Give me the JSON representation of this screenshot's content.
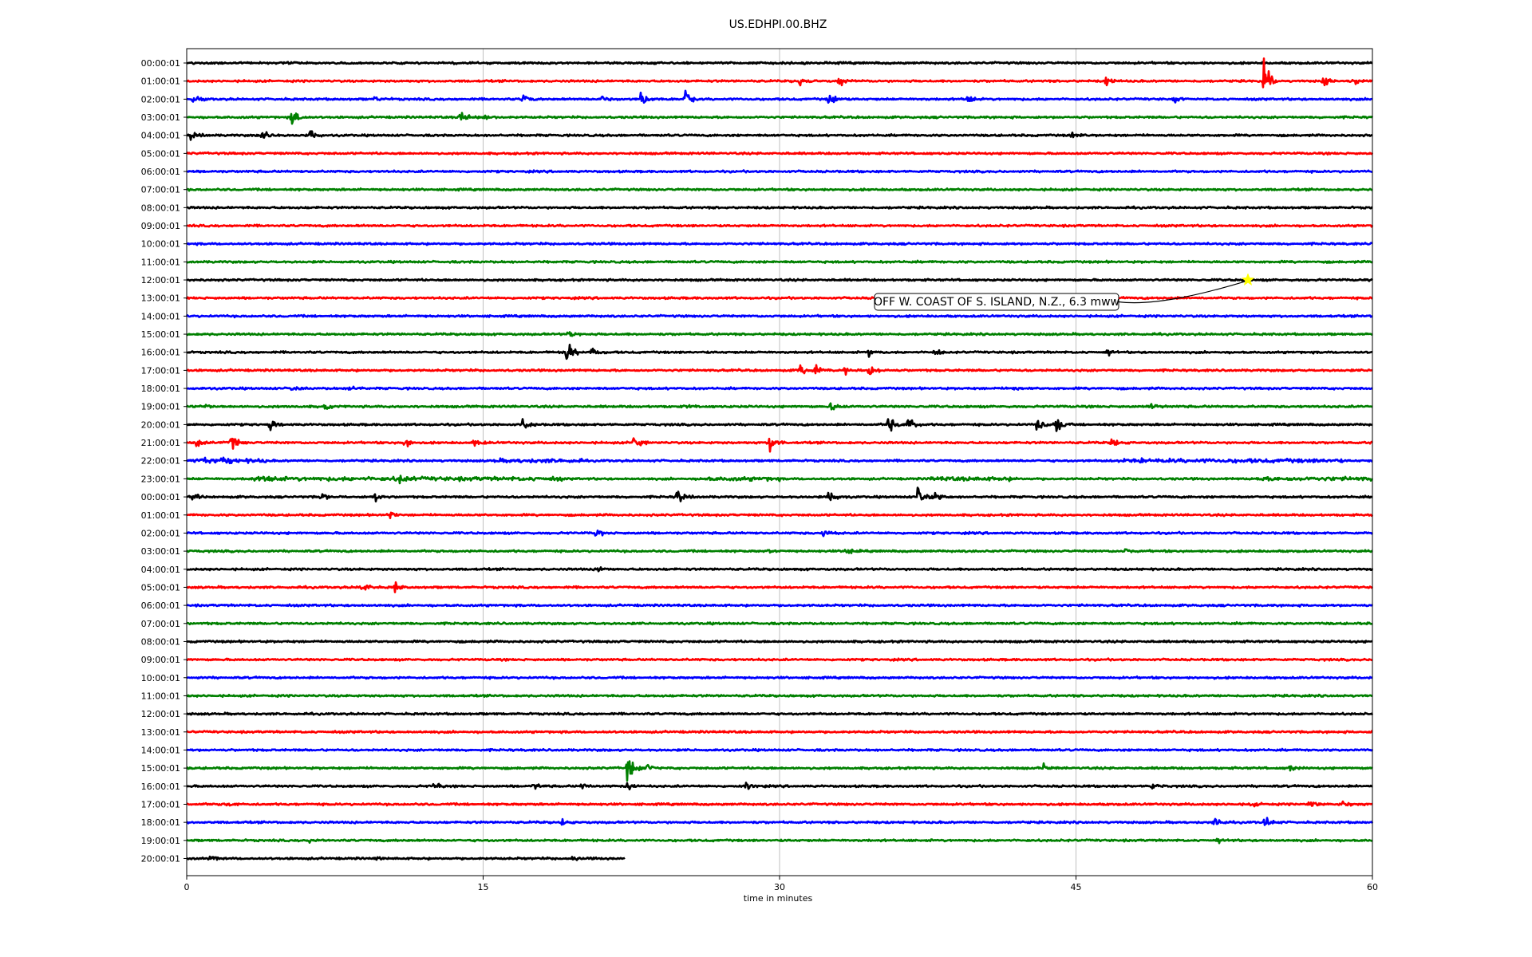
{
  "chart_data": {
    "type": "line",
    "title": "US.EDHPI.00.BHZ",
    "xlabel": "time in minutes",
    "ylabel": "",
    "xlim": [
      0,
      60
    ],
    "x_ticks": [
      0,
      15,
      30,
      45,
      60
    ],
    "grid": true,
    "grid_axis": "x",
    "color_cycle": [
      "#000000",
      "#ff0000",
      "#0000ff",
      "#008000"
    ],
    "last_trace_end_minute": 22.2,
    "row_labels": [
      "00:00:01",
      "01:00:01",
      "02:00:01",
      "03:00:01",
      "04:00:01",
      "05:00:01",
      "06:00:01",
      "07:00:01",
      "08:00:01",
      "09:00:01",
      "10:00:01",
      "11:00:01",
      "12:00:01",
      "13:00:01",
      "14:00:01",
      "15:00:01",
      "16:00:01",
      "17:00:01",
      "18:00:01",
      "19:00:01",
      "20:00:01",
      "21:00:01",
      "22:00:01",
      "23:00:01",
      "00:00:01",
      "01:00:01",
      "02:00:01",
      "03:00:01",
      "04:00:01",
      "05:00:01",
      "06:00:01",
      "07:00:01",
      "08:00:01",
      "09:00:01",
      "10:00:01",
      "11:00:01",
      "12:00:01",
      "13:00:01",
      "14:00:01",
      "15:00:01",
      "16:00:01",
      "17:00:01",
      "18:00:01",
      "19:00:01",
      "20:00:01"
    ],
    "bursts": [
      {
        "row": 1,
        "minute": 31.0,
        "amp": 1.0
      },
      {
        "row": 1,
        "minute": 33.0,
        "amp": 0.9
      },
      {
        "row": 1,
        "minute": 46.5,
        "amp": 0.8
      },
      {
        "row": 1,
        "minute": 54.5,
        "amp": 3.2
      },
      {
        "row": 1,
        "minute": 57.5,
        "amp": 1.0
      },
      {
        "row": 1,
        "minute": 59.0,
        "amp": 0.9
      },
      {
        "row": 2,
        "minute": 0.3,
        "amp": 0.8
      },
      {
        "row": 2,
        "minute": 9.5,
        "amp": 0.6
      },
      {
        "row": 2,
        "minute": 17.0,
        "amp": 0.8
      },
      {
        "row": 2,
        "minute": 21.0,
        "amp": 0.8
      },
      {
        "row": 2,
        "minute": 23.0,
        "amp": 1.4
      },
      {
        "row": 2,
        "minute": 25.2,
        "amp": 1.4
      },
      {
        "row": 2,
        "minute": 32.5,
        "amp": 1.4
      },
      {
        "row": 2,
        "minute": 39.5,
        "amp": 1.0
      },
      {
        "row": 2,
        "minute": 50.0,
        "amp": 0.6
      },
      {
        "row": 3,
        "minute": 5.3,
        "amp": 1.4
      },
      {
        "row": 3,
        "minute": 13.8,
        "amp": 1.4
      },
      {
        "row": 3,
        "minute": 15.0,
        "amp": 0.8
      },
      {
        "row": 4,
        "minute": 0.2,
        "amp": 0.7
      },
      {
        "row": 4,
        "minute": 3.8,
        "amp": 1.4
      },
      {
        "row": 4,
        "minute": 6.2,
        "amp": 1.2
      },
      {
        "row": 4,
        "minute": 44.8,
        "amp": 1.2
      },
      {
        "row": 15,
        "minute": 19.3,
        "amp": 0.7
      },
      {
        "row": 16,
        "minute": 19.2,
        "amp": 2.0
      },
      {
        "row": 16,
        "minute": 20.5,
        "amp": 0.7
      },
      {
        "row": 16,
        "minute": 34.5,
        "amp": 0.7
      },
      {
        "row": 16,
        "minute": 37.8,
        "amp": 0.7
      },
      {
        "row": 16,
        "minute": 46.5,
        "amp": 0.7
      },
      {
        "row": 17,
        "minute": 31.0,
        "amp": 1.1
      },
      {
        "row": 17,
        "minute": 31.8,
        "amp": 0.9
      },
      {
        "row": 17,
        "minute": 33.3,
        "amp": 0.8
      },
      {
        "row": 17,
        "minute": 34.5,
        "amp": 1.2
      },
      {
        "row": 18,
        "minute": 5.3,
        "amp": 0.5
      },
      {
        "row": 18,
        "minute": 8.2,
        "amp": 0.5
      },
      {
        "row": 18,
        "minute": 41.8,
        "amp": 0.5
      },
      {
        "row": 19,
        "minute": 0.9,
        "amp": 0.6
      },
      {
        "row": 19,
        "minute": 7.0,
        "amp": 0.6
      },
      {
        "row": 19,
        "minute": 25.2,
        "amp": 0.4
      },
      {
        "row": 19,
        "minute": 32.6,
        "amp": 0.8
      },
      {
        "row": 19,
        "minute": 48.8,
        "amp": 0.8
      },
      {
        "row": 20,
        "minute": 4.2,
        "amp": 0.8
      },
      {
        "row": 20,
        "minute": 17.0,
        "amp": 1.2
      },
      {
        "row": 20,
        "minute": 35.5,
        "amp": 1.8
      },
      {
        "row": 20,
        "minute": 36.5,
        "amp": 1.6
      },
      {
        "row": 20,
        "minute": 43.0,
        "amp": 1.6
      },
      {
        "row": 20,
        "minute": 44.0,
        "amp": 1.4
      },
      {
        "row": 21,
        "minute": 0.5,
        "amp": 0.8
      },
      {
        "row": 21,
        "minute": 2.2,
        "amp": 1.5
      },
      {
        "row": 21,
        "minute": 11.0,
        "amp": 1.0
      },
      {
        "row": 21,
        "minute": 14.5,
        "amp": 0.8
      },
      {
        "row": 21,
        "minute": 22.6,
        "amp": 1.1
      },
      {
        "row": 21,
        "minute": 29.5,
        "amp": 2.0
      },
      {
        "row": 21,
        "minute": 46.8,
        "amp": 0.8
      },
      {
        "row": 22,
        "minute": 0.8,
        "amp": 0.9
      },
      {
        "row": 22,
        "minute": 1.8,
        "amp": 0.8
      },
      {
        "row": 22,
        "minute": 48.3,
        "amp": 0.5
      },
      {
        "row": 23,
        "minute": 3.8,
        "amp": 1.2
      },
      {
        "row": 23,
        "minute": 10.8,
        "amp": 0.8
      },
      {
        "row": 24,
        "minute": 0.3,
        "amp": 0.6
      },
      {
        "row": 24,
        "minute": 6.8,
        "amp": 0.8
      },
      {
        "row": 24,
        "minute": 9.5,
        "amp": 0.8
      },
      {
        "row": 24,
        "minute": 24.8,
        "amp": 1.2
      },
      {
        "row": 24,
        "minute": 32.5,
        "amp": 1.4
      },
      {
        "row": 24,
        "minute": 37.0,
        "amp": 1.6
      },
      {
        "row": 24,
        "minute": 37.8,
        "amp": 1.1
      },
      {
        "row": 25,
        "minute": 10.2,
        "amp": 0.9
      },
      {
        "row": 26,
        "minute": 20.7,
        "amp": 0.7
      },
      {
        "row": 26,
        "minute": 32.2,
        "amp": 0.7
      },
      {
        "row": 27,
        "minute": 29.4,
        "amp": 0.8
      },
      {
        "row": 27,
        "minute": 33.3,
        "amp": 0.9
      },
      {
        "row": 27,
        "minute": 47.5,
        "amp": 0.6
      },
      {
        "row": 28,
        "minute": 20.8,
        "amp": 0.6
      },
      {
        "row": 29,
        "minute": 8.8,
        "amp": 0.8
      },
      {
        "row": 29,
        "minute": 10.5,
        "amp": 1.0
      },
      {
        "row": 39,
        "minute": 22.3,
        "amp": 2.2
      },
      {
        "row": 39,
        "minute": 23.3,
        "amp": 0.6
      },
      {
        "row": 39,
        "minute": 43.3,
        "amp": 0.8
      },
      {
        "row": 39,
        "minute": 55.8,
        "amp": 0.6
      },
      {
        "row": 40,
        "minute": 12.5,
        "amp": 0.8
      },
      {
        "row": 40,
        "minute": 17.5,
        "amp": 0.7
      },
      {
        "row": 40,
        "minute": 20.0,
        "amp": 0.7
      },
      {
        "row": 40,
        "minute": 22.3,
        "amp": 0.9
      },
      {
        "row": 40,
        "minute": 28.3,
        "amp": 0.7
      },
      {
        "row": 40,
        "minute": 48.8,
        "amp": 0.6
      },
      {
        "row": 41,
        "minute": 2.0,
        "amp": 0.5
      },
      {
        "row": 41,
        "minute": 53.8,
        "amp": 0.7
      },
      {
        "row": 41,
        "minute": 56.8,
        "amp": 0.7
      },
      {
        "row": 41,
        "minute": 58.5,
        "amp": 0.6
      },
      {
        "row": 42,
        "minute": 19.0,
        "amp": 0.6
      },
      {
        "row": 42,
        "minute": 52.0,
        "amp": 0.8
      },
      {
        "row": 42,
        "minute": 54.5,
        "amp": 1.1
      },
      {
        "row": 43,
        "minute": 6.2,
        "amp": 0.5
      },
      {
        "row": 43,
        "minute": 52.0,
        "amp": 0.7
      },
      {
        "row": 44,
        "minute": 1.2,
        "amp": 0.7
      },
      {
        "row": 44,
        "minute": 9.3,
        "amp": 0.6
      },
      {
        "row": 44,
        "minute": 19.5,
        "amp": 0.5
      }
    ],
    "noisy_segments": [
      {
        "row": 22,
        "from": 0.0,
        "to": 4.0
      },
      {
        "row": 22,
        "from": 15.5,
        "to": 20.0
      },
      {
        "row": 22,
        "from": 47.0,
        "to": 58.5
      },
      {
        "row": 23,
        "from": 3.0,
        "to": 19.0
      },
      {
        "row": 23,
        "from": 26.0,
        "to": 30.0
      },
      {
        "row": 23,
        "from": 37.5,
        "to": 42.0
      },
      {
        "row": 23,
        "from": 54.0,
        "to": 60.0
      }
    ],
    "annotations": [
      {
        "text": "OFF W. COAST OF S. ISLAND, N.Z., 6.3 mww",
        "row": 12,
        "minute": 53.7,
        "marker": "star",
        "marker_color": "#ffff00"
      }
    ]
  }
}
